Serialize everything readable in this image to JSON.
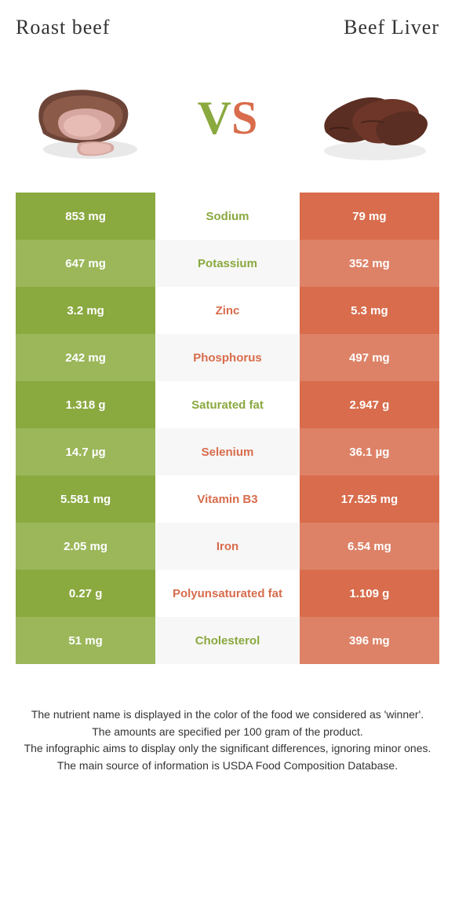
{
  "foods": {
    "left": "Roast beef",
    "right": "Beef Liver"
  },
  "vs": {
    "v": "V",
    "s": "S"
  },
  "colors": {
    "green_dark": "#8aa93f",
    "green_light": "#9bb75a",
    "orange_dark": "#d86c4c",
    "orange_light": "#dd8267",
    "bg": "#ffffff",
    "alt_bg": "#f7f7f7",
    "text": "#333333"
  },
  "rows": [
    {
      "left": "853 mg",
      "name": "Sodium",
      "winner": "green",
      "right": "79 mg"
    },
    {
      "left": "647 mg",
      "name": "Potassium",
      "winner": "green",
      "right": "352 mg"
    },
    {
      "left": "3.2 mg",
      "name": "Zinc",
      "winner": "orange",
      "right": "5.3 mg"
    },
    {
      "left": "242 mg",
      "name": "Phosphorus",
      "winner": "orange",
      "right": "497 mg"
    },
    {
      "left": "1.318 g",
      "name": "Saturated fat",
      "winner": "green",
      "right": "2.947 g"
    },
    {
      "left": "14.7 µg",
      "name": "Selenium",
      "winner": "orange",
      "right": "36.1 µg"
    },
    {
      "left": "5.581 mg",
      "name": "Vitamin B3",
      "winner": "orange",
      "right": "17.525 mg"
    },
    {
      "left": "2.05 mg",
      "name": "Iron",
      "winner": "orange",
      "right": "6.54 mg"
    },
    {
      "left": "0.27 g",
      "name": "Polyunsaturated fat",
      "winner": "orange",
      "right": "1.109 g"
    },
    {
      "left": "51 mg",
      "name": "Cholesterol",
      "winner": "green",
      "right": "396 mg"
    }
  ],
  "footer": [
    "The nutrient name is displayed in the color of the food we considered as 'winner'.",
    "The amounts are specified per 100 gram of the product.",
    "The infographic aims to display only the significant differences, ignoring minor ones.",
    "The main source of information is USDA Food Composition Database."
  ]
}
